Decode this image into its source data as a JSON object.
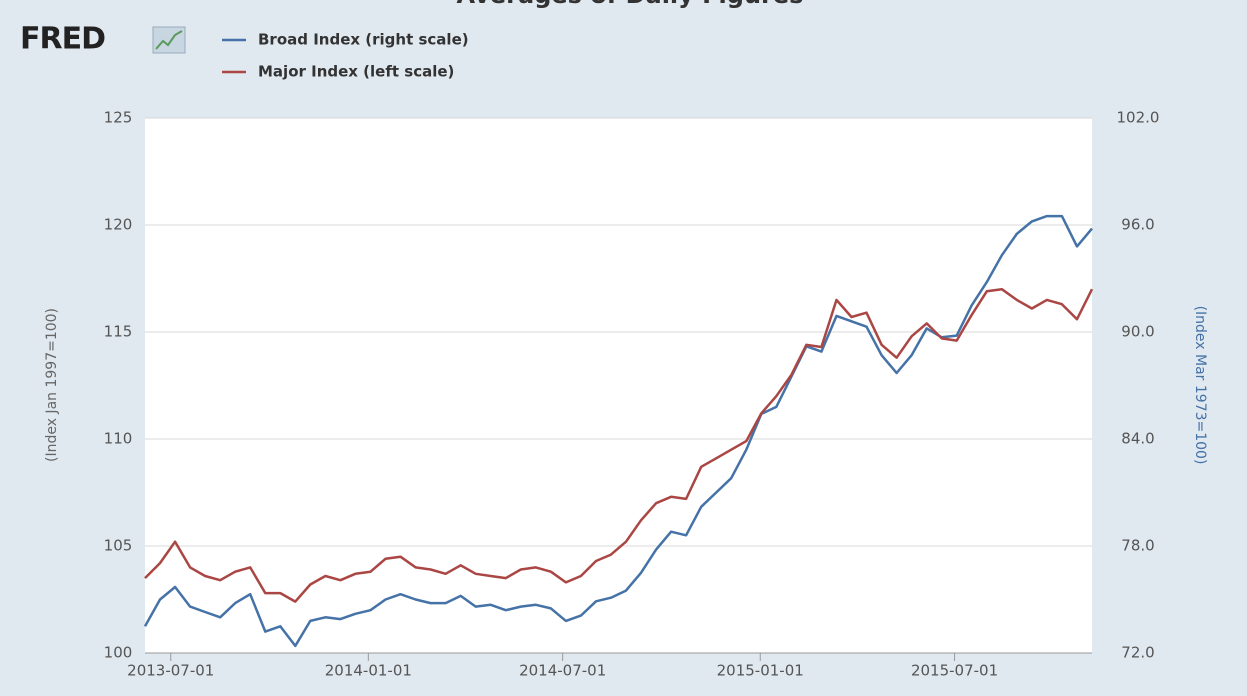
{
  "chart_data": {
    "type": "line",
    "title": "Averages of Daily Figures",
    "logo": "FRED",
    "y_label": "(Index Jan 1997=100)",
    "y2_label": "(Index Mar 1973=100)",
    "x": [
      "2013-06-07",
      "2013-06-21",
      "2013-07-05",
      "2013-07-19",
      "2013-08-02",
      "2013-08-16",
      "2013-08-30",
      "2013-09-13",
      "2013-09-27",
      "2013-10-11",
      "2013-10-25",
      "2013-11-08",
      "2013-11-22",
      "2013-12-06",
      "2013-12-20",
      "2014-01-03",
      "2014-01-17",
      "2014-01-31",
      "2014-02-14",
      "2014-02-28",
      "2014-03-14",
      "2014-03-28",
      "2014-04-11",
      "2014-04-25",
      "2014-05-09",
      "2014-05-23",
      "2014-06-06",
      "2014-06-20",
      "2014-07-04",
      "2014-07-18",
      "2014-08-01",
      "2014-08-15",
      "2014-08-29",
      "2014-09-12",
      "2014-09-26",
      "2014-10-10",
      "2014-10-24",
      "2014-11-07",
      "2014-11-21",
      "2014-12-05",
      "2014-12-19",
      "2015-01-02",
      "2015-01-16",
      "2015-01-30",
      "2015-02-13",
      "2015-02-27",
      "2015-03-13",
      "2015-03-27",
      "2015-04-10",
      "2015-04-24",
      "2015-05-08",
      "2015-05-22",
      "2015-06-05",
      "2015-06-19",
      "2015-07-03",
      "2015-07-17",
      "2015-07-31",
      "2015-08-14",
      "2015-08-28",
      "2015-09-11",
      "2015-09-25",
      "2015-10-09",
      "2015-10-23",
      "2015-11-06"
    ],
    "series": [
      {
        "name": "Broad Index (right scale)",
        "color": "#4572a7",
        "axis": "y2",
        "values": [
          73.5,
          75.0,
          75.7,
          74.6,
          74.3,
          74.0,
          74.8,
          75.3,
          73.2,
          73.5,
          72.4,
          73.8,
          74.0,
          73.9,
          74.2,
          74.4,
          75.0,
          75.3,
          75.0,
          74.8,
          74.8,
          75.2,
          74.6,
          74.7,
          74.4,
          74.6,
          74.7,
          74.5,
          73.8,
          74.1,
          74.9,
          75.1,
          75.5,
          76.5,
          77.8,
          78.8,
          78.6,
          80.2,
          81.0,
          81.8,
          83.4,
          85.4,
          85.8,
          87.5,
          89.2,
          88.9,
          90.9,
          90.6,
          90.3,
          88.7,
          87.7,
          88.7,
          90.2,
          89.7,
          89.8,
          91.5,
          92.8,
          94.3,
          95.5,
          96.2,
          96.5,
          96.5,
          94.8,
          95.8
        ]
      },
      {
        "name": "Major Index (left scale)",
        "color": "#aa4643",
        "values": [
          103.5,
          104.2,
          105.2,
          104.0,
          103.6,
          103.4,
          103.8,
          104.0,
          102.8,
          102.8,
          102.4,
          103.2,
          103.6,
          103.4,
          103.7,
          103.8,
          104.4,
          104.5,
          104.0,
          103.9,
          103.7,
          104.1,
          103.7,
          103.6,
          103.5,
          103.9,
          104.0,
          103.8,
          103.3,
          103.6,
          104.3,
          104.6,
          105.2,
          106.2,
          107.0,
          107.3,
          107.2,
          108.7,
          109.1,
          109.5,
          109.9,
          111.2,
          112.0,
          113.0,
          114.4,
          114.3,
          116.5,
          115.7,
          115.9,
          114.4,
          113.8,
          114.8,
          115.4,
          114.7,
          114.6,
          115.8,
          116.9,
          117.0,
          116.5,
          116.1,
          116.5,
          116.3,
          115.6,
          117.0
        ]
      }
    ],
    "xlim": [
      "2013-06-07",
      "2015-11-06"
    ],
    "xticks": [
      "2013-07-01",
      "2014-01-01",
      "2014-07-01",
      "2015-01-01",
      "2015-07-01"
    ],
    "ylim": [
      100,
      125
    ],
    "yticks": [
      100,
      105,
      110,
      115,
      120,
      125
    ],
    "y2lim": [
      72,
      102
    ],
    "y2ticks": [
      {
        "value": 72,
        "label": "72.0"
      },
      {
        "value": 78,
        "label": "78.0"
      },
      {
        "value": 84,
        "label": "84.0"
      },
      {
        "value": 90,
        "label": "90.0"
      },
      {
        "value": 96,
        "label": "96.0"
      },
      {
        "value": 102,
        "label": "102.0"
      }
    ],
    "grid": true
  }
}
